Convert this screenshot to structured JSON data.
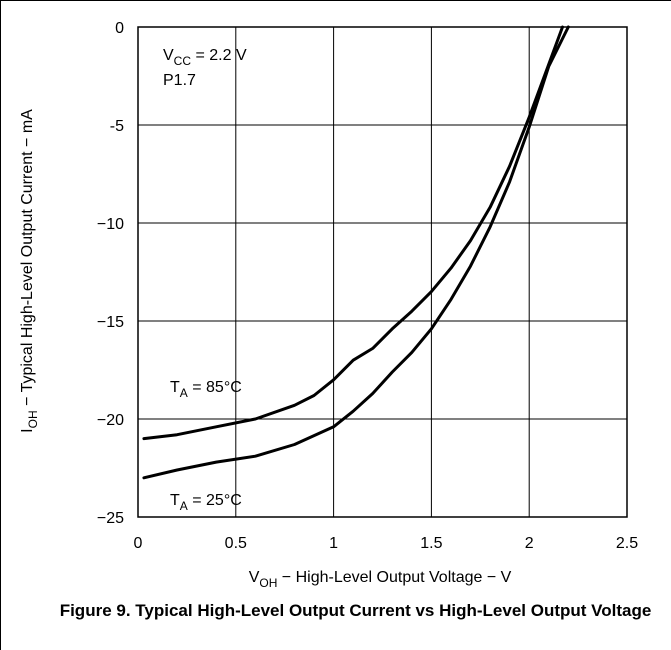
{
  "chart_data": {
    "type": "line",
    "title": "",
    "xlabel": {
      "main": "V",
      "sub": "OH",
      "rest": " − High-Level Output Voltage − V"
    },
    "ylabel": {
      "main": "I",
      "sub": "OH",
      "rest": " − Typical High-Level Output Current − mA"
    },
    "xlim": [
      0,
      2.5
    ],
    "ylim": [
      -25,
      0
    ],
    "xticks": [
      0,
      0.5,
      1,
      1.5,
      2,
      2.5
    ],
    "xtick_labels": [
      "0",
      "0.5",
      "1",
      "1.5",
      "2",
      "2.5"
    ],
    "yticks": [
      0,
      -5,
      -10,
      -15,
      -20,
      -25
    ],
    "ytick_labels": [
      "0",
      "-5",
      "−10",
      "−15",
      "−20",
      "−25"
    ],
    "grid": true,
    "annotations": {
      "vcc": {
        "main": "V",
        "sub": "CC",
        "rest": " = 2.2 V"
      },
      "pin": "P1.7"
    },
    "series": [
      {
        "name": {
          "main": "T",
          "sub": "A",
          "rest": " = 85°C"
        },
        "x": [
          0.03,
          0.2,
          0.4,
          0.6,
          0.8,
          0.9,
          1.0,
          1.1,
          1.2,
          1.3,
          1.4,
          1.5,
          1.6,
          1.7,
          1.8,
          1.9,
          2.0,
          2.1,
          2.17
        ],
        "y": [
          -21.0,
          -20.8,
          -20.4,
          -20.0,
          -19.3,
          -18.8,
          -18.0,
          -17.0,
          -16.4,
          -15.4,
          -14.5,
          -13.5,
          -12.3,
          -10.9,
          -9.2,
          -7.1,
          -4.6,
          -1.9,
          0
        ]
      },
      {
        "name": {
          "main": "T",
          "sub": "A",
          "rest": " = 25°C"
        },
        "x": [
          0.03,
          0.2,
          0.4,
          0.6,
          0.8,
          1.0,
          1.1,
          1.2,
          1.3,
          1.4,
          1.5,
          1.6,
          1.7,
          1.8,
          1.9,
          2.0,
          2.1,
          2.2
        ],
        "y": [
          -23.0,
          -22.6,
          -22.2,
          -21.9,
          -21.3,
          -20.4,
          -19.6,
          -18.7,
          -17.6,
          -16.6,
          -15.4,
          -13.9,
          -12.2,
          -10.2,
          -7.9,
          -5.1,
          -2.0,
          0
        ]
      }
    ]
  },
  "caption": "Figure 9. Typical High-Level Output Current vs High-Level Output Voltage"
}
